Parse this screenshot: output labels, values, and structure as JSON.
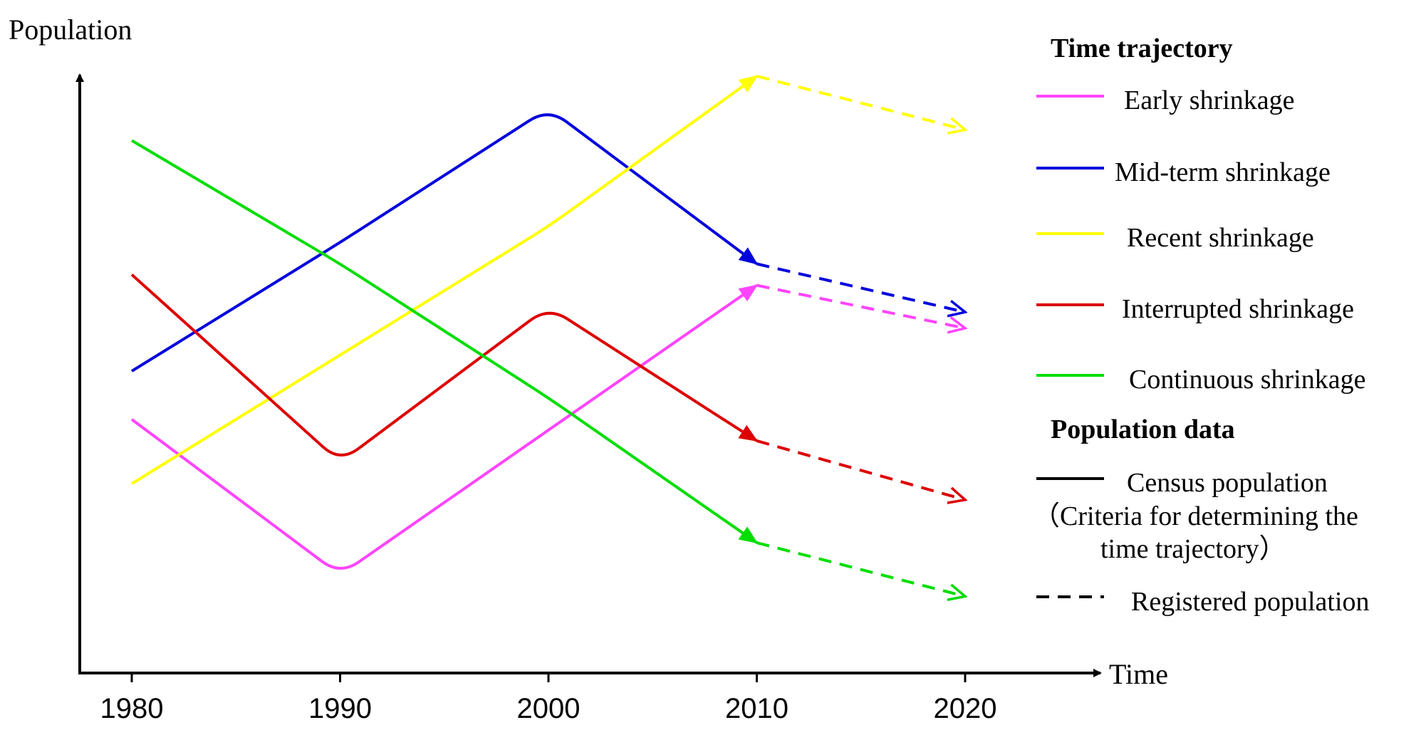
{
  "chart_data": {
    "type": "line",
    "xlabel": "Time",
    "ylabel": "Population",
    "x": [
      1980,
      1990,
      2000,
      2010,
      2020
    ],
    "ylim": [
      0,
      100
    ],
    "series": [
      {
        "name": "Early  shrinkage",
        "color": "#ff44ff",
        "census": [
          [
            1980,
            38
          ],
          [
            1990,
            9
          ],
          [
            2000,
            36
          ],
          [
            2010,
            63
          ]
        ],
        "registered": [
          [
            2010,
            63
          ],
          [
            2020,
            55
          ]
        ]
      },
      {
        "name": "Mid-term shrinkage",
        "color": "#0000dd",
        "census": [
          [
            1980,
            47
          ],
          [
            1990,
            71
          ],
          [
            2000,
            96
          ],
          [
            2010,
            67
          ]
        ],
        "registered": [
          [
            2010,
            67
          ],
          [
            2020,
            58
          ]
        ]
      },
      {
        "name": "Recent shrinkage",
        "color": "#ffff00",
        "census": [
          [
            1980,
            26
          ],
          [
            1990,
            50
          ],
          [
            2000,
            74
          ],
          [
            2010,
            102
          ]
        ],
        "registered": [
          [
            2010,
            102
          ],
          [
            2020,
            92
          ]
        ]
      },
      {
        "name": "Interrupted shrinkage",
        "color": "#dd0000",
        "census": [
          [
            1980,
            65
          ],
          [
            1990,
            30
          ],
          [
            2000,
            59
          ],
          [
            2010,
            34
          ]
        ],
        "registered": [
          [
            2010,
            34
          ],
          [
            2020,
            23
          ]
        ]
      },
      {
        "name": "Continuous shrinkage",
        "color": "#00dd00",
        "census": [
          [
            1980,
            90
          ],
          [
            1990,
            67
          ],
          [
            2000,
            42
          ],
          [
            2010,
            15
          ]
        ],
        "registered": [
          [
            2010,
            15
          ],
          [
            2020,
            5
          ]
        ]
      }
    ],
    "legend": {
      "position": "right",
      "trajectory_title": "Time trajectory",
      "data_title": "Population data",
      "census_label": "Census population",
      "census_note_line1": "（Criteria for determining the",
      "census_note_line2": "time trajectory）",
      "registered_label": "Registered population"
    }
  }
}
